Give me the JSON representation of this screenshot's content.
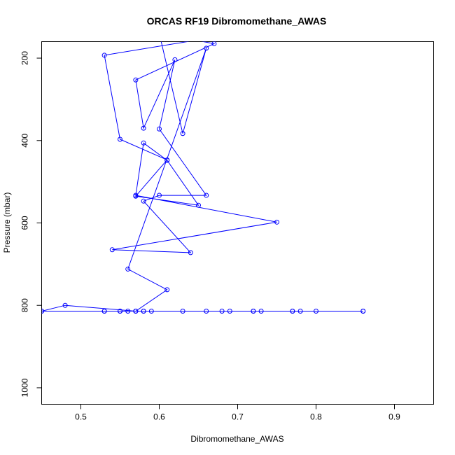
{
  "chart_data": {
    "type": "line",
    "title": "ORCAS RF19 Dibromomethane_AWAS",
    "xlabel": "Dibromomethane_AWAS",
    "ylabel": "Pressure (mbar)",
    "xlim": [
      0.45,
      0.95
    ],
    "ylim": [
      1040,
      160
    ],
    "y_reversed": true,
    "x_ticks": [
      0.5,
      0.6,
      0.7,
      0.8,
      0.9
    ],
    "y_ticks": [
      200,
      400,
      600,
      800,
      1000
    ],
    "grid": false,
    "colors": {
      "series": "#0000ff",
      "ground_segment": "#000000"
    },
    "marker": "open-circle",
    "series": [
      {
        "x": [
          0.7,
          0.53,
          0.55,
          0.61,
          0.57,
          0.65,
          0.61,
          0.58,
          0.57,
          0.75,
          0.54,
          0.64,
          0.58,
          0.6,
          0.66,
          0.6,
          0.62,
          0.58,
          0.57,
          0.67,
          0.6,
          0.63,
          0.66,
          0.56,
          0.61,
          0.57,
          0.48,
          0.45,
          0.86
        ],
        "y": [
          140,
          193,
          397,
          447,
          535,
          557,
          448,
          406,
          533,
          598,
          665,
          672,
          547,
          533,
          533,
          372,
          204,
          370,
          253,
          165,
          140,
          383,
          176,
          712,
          762,
          814,
          800,
          814,
          814
        ]
      }
    ],
    "ground_points": {
      "y": 814,
      "x": [
        0.45,
        0.53,
        0.53,
        0.55,
        0.55,
        0.56,
        0.57,
        0.57,
        0.58,
        0.58,
        0.59,
        0.63,
        0.66,
        0.68,
        0.69,
        0.72,
        0.72,
        0.73,
        0.77,
        0.77,
        0.78,
        0.8,
        0.86
      ]
    }
  }
}
